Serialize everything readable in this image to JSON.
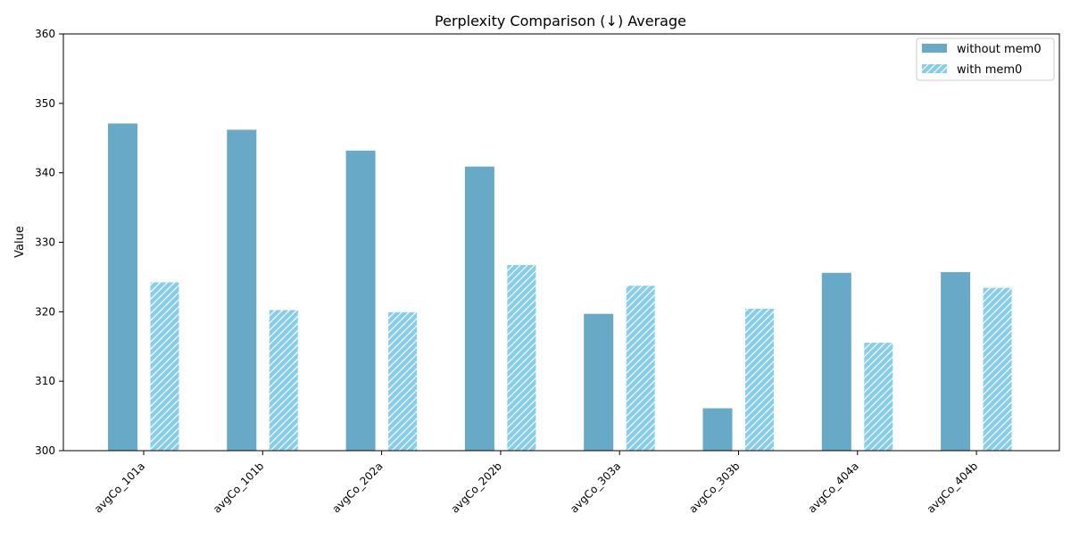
{
  "chart_data": {
    "type": "bar",
    "title": "Perplexity Comparison (↓) Average",
    "xlabel": "",
    "ylabel": "Value",
    "ylim": [
      300,
      360
    ],
    "yticks": [
      300,
      310,
      320,
      330,
      340,
      350,
      360
    ],
    "categories": [
      "avgCo_101a",
      "avgCo_101b",
      "avgCo_202a",
      "avgCo_202b",
      "avgCo_303a",
      "avgCo_303b",
      "avgCo_404a",
      "avgCo_404b"
    ],
    "series": [
      {
        "name": "without mem0",
        "color": "#67a9c6",
        "pattern": "solid",
        "values": [
          347.1,
          346.2,
          343.2,
          340.9,
          319.7,
          306.1,
          325.6,
          325.7
        ]
      },
      {
        "name": "with mem0",
        "color": "#87ceeb",
        "pattern": "hatch",
        "values": [
          324.3,
          320.3,
          320.0,
          326.8,
          323.8,
          320.5,
          315.6,
          323.5
        ]
      }
    ],
    "legend_position": "top-right",
    "grid": false
  }
}
